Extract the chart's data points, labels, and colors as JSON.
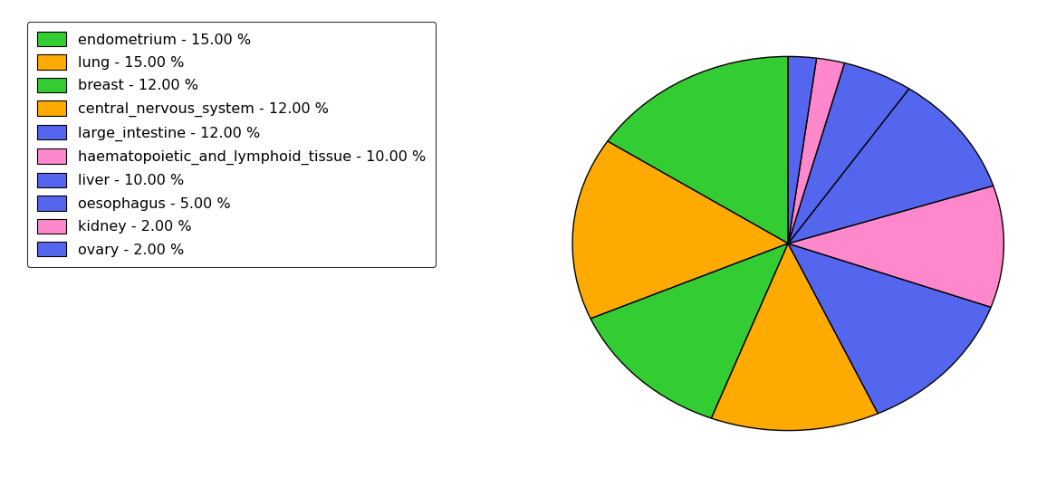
{
  "labels": [
    "endometrium - 15.00 %",
    "lung - 15.00 %",
    "breast - 12.00 %",
    "central_nervous_system - 12.00 %",
    "large_intestine - 12.00 %",
    "haematopoietic_and_lymphoid_tissue - 10.00 %",
    "liver - 10.00 %",
    "oesophagus - 5.00 %",
    "kidney - 2.00 %",
    "ovary - 2.00 %"
  ],
  "sizes": [
    15,
    15,
    12,
    12,
    12,
    10,
    10,
    5,
    2,
    2
  ],
  "colors": [
    "#33cc33",
    "#ffaa00",
    "#33cc33",
    "#ffaa00",
    "#5566ee",
    "#ff88cc",
    "#5566ee",
    "#5566ee",
    "#ff88cc",
    "#5566ee"
  ],
  "legend_colors": [
    "#33cc33",
    "#ffaa00",
    "#33cc33",
    "#ffaa00",
    "#5566ee",
    "#ff88cc",
    "#5566ee",
    "#5566ee",
    "#ff88cc",
    "#5566ee"
  ],
  "startangle": 90,
  "background_color": "#ffffff",
  "legend_fontsize": 11.5,
  "figsize": [
    11.45,
    5.38
  ],
  "dpi": 100
}
